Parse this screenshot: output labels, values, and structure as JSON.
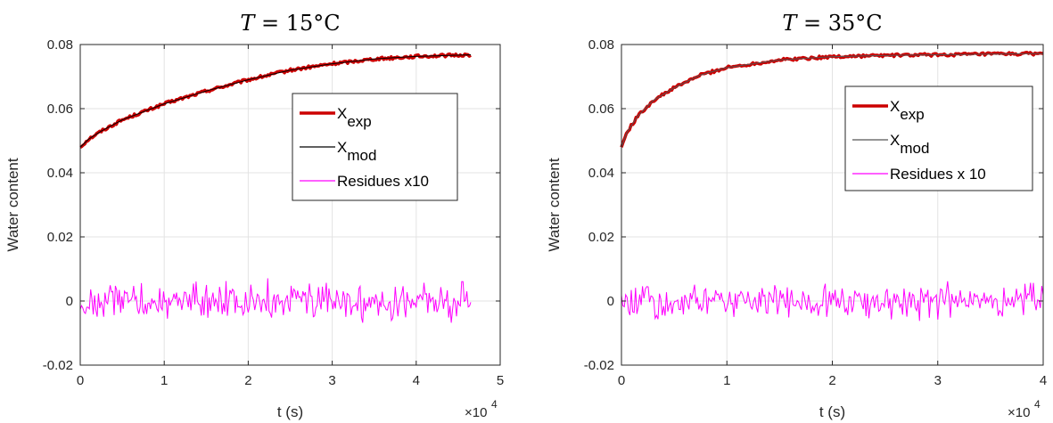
{
  "chart_data": [
    {
      "type": "line",
      "title": "T = 15°C",
      "title_parts": {
        "var": "T",
        "rest": " = 15°C"
      },
      "xlabel": "t (s)",
      "ylabel": "Water content",
      "x_multiplier": "×10",
      "x_multiplier_exp": "4",
      "xlim": [
        0,
        5
      ],
      "ylim": [
        -0.02,
        0.08
      ],
      "xticks": [
        "0",
        "1",
        "2",
        "3",
        "4",
        "5"
      ],
      "yticks": [
        "-0.02",
        "0",
        "0.02",
        "0.04",
        "0.06",
        "0.08"
      ],
      "grid": true,
      "legend_position": "right",
      "x_end": 4.65,
      "series": [
        {
          "name": "X",
          "sub": "exp",
          "color": "#cc0000",
          "x": [
            0,
            0.1,
            0.25,
            0.5,
            0.75,
            1.0,
            1.5,
            2.0,
            2.5,
            3.0,
            3.5,
            4.0,
            4.65
          ],
          "values": [
            0.048,
            0.0505,
            0.053,
            0.0565,
            0.059,
            0.0615,
            0.0655,
            0.069,
            0.072,
            0.074,
            0.0755,
            0.0763,
            0.0768
          ]
        },
        {
          "name": "X",
          "sub": "mod",
          "color": "#000000",
          "x": [
            0,
            0.1,
            0.25,
            0.5,
            0.75,
            1.0,
            1.5,
            2.0,
            2.5,
            3.0,
            3.5,
            4.0,
            4.65
          ],
          "values": [
            0.048,
            0.0505,
            0.053,
            0.0565,
            0.059,
            0.0615,
            0.0655,
            0.069,
            0.072,
            0.074,
            0.0755,
            0.0763,
            0.0768
          ]
        },
        {
          "name": "Residues x10",
          "color": "#ff00ff",
          "x_range": [
            0,
            4.65
          ],
          "center": 0.0,
          "amplitude": 0.0085,
          "points": 300
        }
      ]
    },
    {
      "type": "line",
      "title": "T = 35°C",
      "title_parts": {
        "var": "T",
        "rest": " = 35°C"
      },
      "xlabel": "t (s)",
      "ylabel": "Water content",
      "x_multiplier": "×10",
      "x_multiplier_exp": "4",
      "xlim": [
        0,
        4
      ],
      "ylim": [
        -0.02,
        0.08
      ],
      "xticks": [
        "0",
        "1",
        "2",
        "3",
        "4"
      ],
      "yticks": [
        "-0.02",
        "0",
        "0.02",
        "0.04",
        "0.06",
        "0.08"
      ],
      "grid": true,
      "legend_position": "right",
      "x_end": 4.0,
      "series": [
        {
          "name": "X",
          "sub": "exp",
          "color": "#cc0000",
          "x": [
            0,
            0.05,
            0.15,
            0.3,
            0.5,
            0.75,
            1.0,
            1.5,
            2.0,
            2.5,
            3.0,
            3.5,
            4.0
          ],
          "values": [
            0.048,
            0.0525,
            0.0575,
            0.0625,
            0.0665,
            0.0705,
            0.0728,
            0.0752,
            0.0762,
            0.0766,
            0.0768,
            0.077,
            0.0772
          ]
        },
        {
          "name": "X",
          "sub": "mod",
          "color": "#555555",
          "x": [
            0,
            0.05,
            0.15,
            0.3,
            0.5,
            0.75,
            1.0,
            1.5,
            2.0,
            2.5,
            3.0,
            3.5,
            4.0
          ],
          "values": [
            0.048,
            0.0525,
            0.0575,
            0.0625,
            0.0665,
            0.0705,
            0.0728,
            0.0752,
            0.0762,
            0.0766,
            0.0768,
            0.077,
            0.0772
          ]
        },
        {
          "name": "Residues x 10",
          "color": "#ff00ff",
          "x_range": [
            0,
            4.0
          ],
          "center": 0.0,
          "amplitude": 0.0075,
          "points": 300
        }
      ]
    }
  ]
}
